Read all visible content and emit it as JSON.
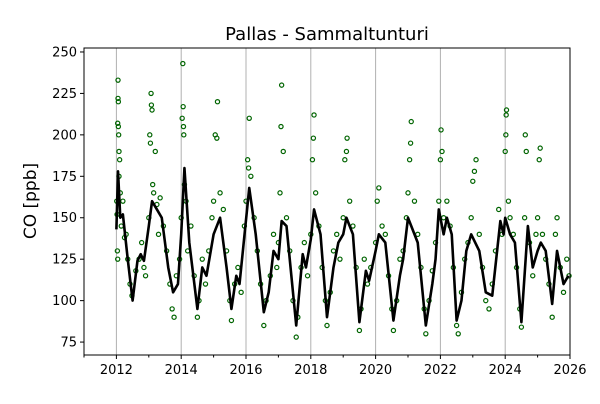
{
  "chart_data": {
    "type": "scatter",
    "title": "Pallas - Sammaltunturi",
    "xlabel": "",
    "ylabel": "CO [ppb]",
    "xlim": [
      2011,
      2026
    ],
    "ylim": [
      67.2,
      252.4
    ],
    "xticks": [
      2012,
      2014,
      2016,
      2018,
      2020,
      2022,
      2024,
      2026
    ],
    "xminor": [
      2011,
      2013,
      2015,
      2017,
      2019,
      2021,
      2023,
      2025
    ],
    "yticks": [
      75,
      100,
      125,
      150,
      175,
      200,
      225,
      250
    ],
    "grid": "vertical at major x ticks",
    "colors": {
      "points": "#006400",
      "line": "#000000",
      "grid": "#b0b0b0"
    },
    "series": [
      {
        "type": "scatter",
        "marker": "open-circle",
        "points": [
          [
            2012.01,
            160
          ],
          [
            2012.02,
            152
          ],
          [
            2012.03,
            130
          ],
          [
            2012.04,
            125
          ],
          [
            2012.05,
            233
          ],
          [
            2012.05,
            222
          ],
          [
            2012.06,
            220
          ],
          [
            2012.04,
            207
          ],
          [
            2012.06,
            205
          ],
          [
            2012.07,
            200
          ],
          [
            2012.08,
            190
          ],
          [
            2012.1,
            185
          ],
          [
            2012.08,
            175
          ],
          [
            2012.12,
            165
          ],
          [
            2012.15,
            145
          ],
          [
            2012.2,
            160
          ],
          [
            2012.25,
            138
          ],
          [
            2012.3,
            140
          ],
          [
            2012.35,
            125
          ],
          [
            2012.42,
            110
          ],
          [
            2012.48,
            103
          ],
          [
            2012.6,
            118
          ],
          [
            2012.7,
            125
          ],
          [
            2012.78,
            135
          ],
          [
            2012.85,
            120
          ],
          [
            2012.9,
            115
          ],
          [
            2013.0,
            150
          ],
          [
            2013.03,
            200
          ],
          [
            2013.05,
            195
          ],
          [
            2013.07,
            225
          ],
          [
            2013.08,
            218
          ],
          [
            2013.1,
            215
          ],
          [
            2013.12,
            170
          ],
          [
            2013.15,
            165
          ],
          [
            2013.2,
            190
          ],
          [
            2013.25,
            158
          ],
          [
            2013.3,
            140
          ],
          [
            2013.35,
            162
          ],
          [
            2013.45,
            145
          ],
          [
            2013.55,
            130
          ],
          [
            2013.65,
            110
          ],
          [
            2013.72,
            95
          ],
          [
            2013.78,
            90
          ],
          [
            2013.85,
            115
          ],
          [
            2013.95,
            125
          ],
          [
            2014.0,
            150
          ],
          [
            2014.03,
            210
          ],
          [
            2014.05,
            243
          ],
          [
            2014.06,
            217
          ],
          [
            2014.07,
            205
          ],
          [
            2014.08,
            200
          ],
          [
            2014.1,
            170
          ],
          [
            2014.15,
            160
          ],
          [
            2014.2,
            130
          ],
          [
            2014.3,
            145
          ],
          [
            2014.4,
            115
          ],
          [
            2014.5,
            90
          ],
          [
            2014.55,
            100
          ],
          [
            2014.65,
            125
          ],
          [
            2014.75,
            110
          ],
          [
            2014.85,
            130
          ],
          [
            2014.95,
            150
          ],
          [
            2015.0,
            160
          ],
          [
            2015.05,
            200
          ],
          [
            2015.1,
            198
          ],
          [
            2015.12,
            220
          ],
          [
            2015.2,
            165
          ],
          [
            2015.3,
            155
          ],
          [
            2015.4,
            130
          ],
          [
            2015.5,
            100
          ],
          [
            2015.55,
            88
          ],
          [
            2015.65,
            110
          ],
          [
            2015.75,
            120
          ],
          [
            2015.85,
            105
          ],
          [
            2015.95,
            145
          ],
          [
            2016.0,
            160
          ],
          [
            2016.05,
            185
          ],
          [
            2016.08,
            180
          ],
          [
            2016.1,
            210
          ],
          [
            2016.15,
            175
          ],
          [
            2016.25,
            150
          ],
          [
            2016.35,
            130
          ],
          [
            2016.45,
            110
          ],
          [
            2016.55,
            85
          ],
          [
            2016.62,
            100
          ],
          [
            2016.75,
            115
          ],
          [
            2016.85,
            140
          ],
          [
            2016.95,
            120
          ],
          [
            2017.0,
            135
          ],
          [
            2017.05,
            165
          ],
          [
            2017.08,
            205
          ],
          [
            2017.1,
            230
          ],
          [
            2017.15,
            190
          ],
          [
            2017.25,
            150
          ],
          [
            2017.35,
            130
          ],
          [
            2017.45,
            100
          ],
          [
            2017.55,
            78
          ],
          [
            2017.6,
            90
          ],
          [
            2017.7,
            120
          ],
          [
            2017.8,
            135
          ],
          [
            2017.9,
            115
          ],
          [
            2018.0,
            140
          ],
          [
            2018.05,
            185
          ],
          [
            2018.08,
            198
          ],
          [
            2018.1,
            212
          ],
          [
            2018.15,
            165
          ],
          [
            2018.25,
            145
          ],
          [
            2018.35,
            120
          ],
          [
            2018.45,
            100
          ],
          [
            2018.5,
            85
          ],
          [
            2018.6,
            105
          ],
          [
            2018.7,
            130
          ],
          [
            2018.8,
            140
          ],
          [
            2018.9,
            125
          ],
          [
            2019.0,
            150
          ],
          [
            2019.05,
            185
          ],
          [
            2019.1,
            190
          ],
          [
            2019.12,
            198
          ],
          [
            2019.2,
            160
          ],
          [
            2019.3,
            145
          ],
          [
            2019.4,
            120
          ],
          [
            2019.5,
            82
          ],
          [
            2019.55,
            95
          ],
          [
            2019.65,
            125
          ],
          [
            2019.75,
            110
          ],
          [
            2019.85,
            120
          ],
          [
            2020.0,
            135
          ],
          [
            2020.05,
            160
          ],
          [
            2020.1,
            168
          ],
          [
            2020.2,
            145
          ],
          [
            2020.3,
            140
          ],
          [
            2020.4,
            115
          ],
          [
            2020.5,
            95
          ],
          [
            2020.55,
            82
          ],
          [
            2020.65,
            100
          ],
          [
            2020.75,
            125
          ],
          [
            2020.85,
            130
          ],
          [
            2020.95,
            150
          ],
          [
            2021.0,
            165
          ],
          [
            2021.05,
            185
          ],
          [
            2021.08,
            195
          ],
          [
            2021.1,
            208
          ],
          [
            2021.2,
            160
          ],
          [
            2021.3,
            140
          ],
          [
            2021.4,
            120
          ],
          [
            2021.5,
            95
          ],
          [
            2021.55,
            80
          ],
          [
            2021.65,
            100
          ],
          [
            2021.75,
            118
          ],
          [
            2021.85,
            135
          ],
          [
            2021.95,
            160
          ],
          [
            2022.0,
            185
          ],
          [
            2022.02,
            203
          ],
          [
            2022.05,
            190
          ],
          [
            2022.1,
            150
          ],
          [
            2022.2,
            160
          ],
          [
            2022.3,
            145
          ],
          [
            2022.4,
            120
          ],
          [
            2022.5,
            85
          ],
          [
            2022.55,
            80
          ],
          [
            2022.65,
            105
          ],
          [
            2022.75,
            125
          ],
          [
            2022.85,
            135
          ],
          [
            2022.95,
            150
          ],
          [
            2023.0,
            172
          ],
          [
            2023.05,
            178
          ],
          [
            2023.1,
            185
          ],
          [
            2023.2,
            140
          ],
          [
            2023.3,
            120
          ],
          [
            2023.4,
            100
          ],
          [
            2023.5,
            95
          ],
          [
            2023.6,
            110
          ],
          [
            2023.7,
            130
          ],
          [
            2023.8,
            155
          ],
          [
            2023.9,
            140
          ],
          [
            2024.0,
            190
          ],
          [
            2024.02,
            200
          ],
          [
            2024.03,
            212
          ],
          [
            2024.04,
            215
          ],
          [
            2024.1,
            160
          ],
          [
            2024.15,
            150
          ],
          [
            2024.25,
            140
          ],
          [
            2024.35,
            120
          ],
          [
            2024.45,
            95
          ],
          [
            2024.5,
            84
          ],
          [
            2024.6,
            150
          ],
          [
            2024.62,
            200
          ],
          [
            2024.65,
            190
          ],
          [
            2024.75,
            135
          ],
          [
            2024.85,
            115
          ],
          [
            2024.95,
            140
          ],
          [
            2025.0,
            150
          ],
          [
            2025.05,
            185
          ],
          [
            2025.08,
            192
          ],
          [
            2025.15,
            140
          ],
          [
            2025.25,
            125
          ],
          [
            2025.35,
            110
          ],
          [
            2025.45,
            90
          ],
          [
            2025.55,
            140
          ],
          [
            2025.6,
            150
          ],
          [
            2025.7,
            120
          ],
          [
            2025.8,
            105
          ],
          [
            2025.9,
            125
          ],
          [
            2025.97,
            115
          ]
        ]
      },
      {
        "type": "line",
        "points": [
          [
            2012.0,
            143
          ],
          [
            2012.05,
            178
          ],
          [
            2012.12,
            150
          ],
          [
            2012.2,
            152
          ],
          [
            2012.35,
            125
          ],
          [
            2012.5,
            100
          ],
          [
            2012.65,
            124
          ],
          [
            2012.75,
            128
          ],
          [
            2012.85,
            124
          ],
          [
            2013.0,
            145
          ],
          [
            2013.1,
            160
          ],
          [
            2013.25,
            155
          ],
          [
            2013.4,
            150
          ],
          [
            2013.6,
            120
          ],
          [
            2013.75,
            105
          ],
          [
            2013.9,
            110
          ],
          [
            2014.0,
            140
          ],
          [
            2014.1,
            180
          ],
          [
            2014.25,
            135
          ],
          [
            2014.5,
            95
          ],
          [
            2014.65,
            120
          ],
          [
            2014.78,
            115
          ],
          [
            2015.0,
            140
          ],
          [
            2015.2,
            150
          ],
          [
            2015.4,
            120
          ],
          [
            2015.55,
            95
          ],
          [
            2015.7,
            115
          ],
          [
            2015.8,
            110
          ],
          [
            2016.1,
            168
          ],
          [
            2016.3,
            140
          ],
          [
            2016.55,
            93
          ],
          [
            2016.7,
            105
          ],
          [
            2016.85,
            130
          ],
          [
            2017.0,
            125
          ],
          [
            2017.1,
            148
          ],
          [
            2017.25,
            145
          ],
          [
            2017.55,
            85
          ],
          [
            2017.75,
            128
          ],
          [
            2017.85,
            120
          ],
          [
            2018.0,
            137
          ],
          [
            2018.1,
            155
          ],
          [
            2018.3,
            140
          ],
          [
            2018.5,
            90
          ],
          [
            2018.7,
            120
          ],
          [
            2018.85,
            135
          ],
          [
            2019.0,
            140
          ],
          [
            2019.1,
            150
          ],
          [
            2019.3,
            140
          ],
          [
            2019.5,
            87
          ],
          [
            2019.7,
            118
          ],
          [
            2019.8,
            112
          ],
          [
            2020.0,
            130
          ],
          [
            2020.1,
            140
          ],
          [
            2020.3,
            135
          ],
          [
            2020.55,
            88
          ],
          [
            2020.75,
            115
          ],
          [
            2020.85,
            125
          ],
          [
            2021.0,
            150
          ],
          [
            2021.1,
            145
          ],
          [
            2021.3,
            135
          ],
          [
            2021.55,
            85
          ],
          [
            2021.75,
            110
          ],
          [
            2021.85,
            125
          ],
          [
            2021.95,
            155
          ],
          [
            2022.1,
            140
          ],
          [
            2022.2,
            150
          ],
          [
            2022.35,
            140
          ],
          [
            2022.5,
            88
          ],
          [
            2022.65,
            100
          ],
          [
            2022.8,
            130
          ],
          [
            2022.95,
            140
          ],
          [
            2023.2,
            130
          ],
          [
            2023.4,
            105
          ],
          [
            2023.6,
            103
          ],
          [
            2023.85,
            148
          ],
          [
            2023.95,
            140
          ],
          [
            2024.0,
            150
          ],
          [
            2024.15,
            140
          ],
          [
            2024.3,
            135
          ],
          [
            2024.5,
            87
          ],
          [
            2024.7,
            145
          ],
          [
            2024.85,
            120
          ],
          [
            2025.0,
            130
          ],
          [
            2025.1,
            135
          ],
          [
            2025.25,
            130
          ],
          [
            2025.45,
            98
          ],
          [
            2025.6,
            130
          ],
          [
            2025.8,
            110
          ],
          [
            2025.95,
            115
          ]
        ]
      }
    ]
  }
}
